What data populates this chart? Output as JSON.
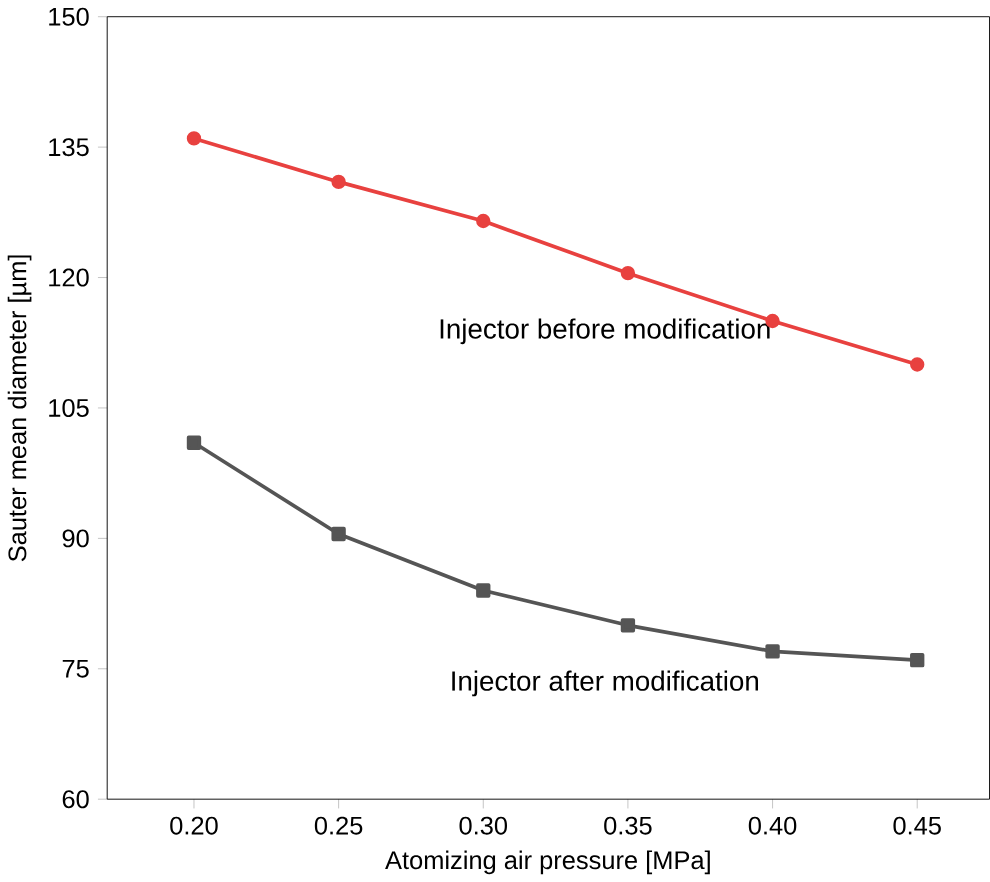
{
  "chart_data": {
    "type": "line",
    "xlabel": "Atomizing air pressure [MPa]",
    "ylabel": "Sauter mean diameter [µm]",
    "x": [
      0.2,
      0.25,
      0.3,
      0.35,
      0.4,
      0.45
    ],
    "series": [
      {
        "name": "Injector before modification",
        "color": "#e8413f",
        "marker": "circle",
        "values": [
          136,
          131,
          126.5,
          120.5,
          115,
          110
        ]
      },
      {
        "name": "Injector after modification",
        "color": "#555555",
        "marker": "square",
        "values": [
          101,
          90.5,
          84,
          80,
          77,
          76
        ]
      }
    ],
    "xlim": [
      0.17,
      0.475
    ],
    "ylim": [
      60,
      150
    ],
    "xticks": [
      {
        "value": 0.2,
        "label": "0.20"
      },
      {
        "value": 0.25,
        "label": "0.25"
      },
      {
        "value": 0.3,
        "label": "0.30"
      },
      {
        "value": 0.35,
        "label": "0.35"
      },
      {
        "value": 0.4,
        "label": "0.40"
      },
      {
        "value": 0.45,
        "label": "0.45"
      }
    ],
    "yticks": [
      60,
      75,
      90,
      105,
      120,
      135,
      150
    ],
    "grid": false,
    "legend": false,
    "line_style": "solid"
  }
}
